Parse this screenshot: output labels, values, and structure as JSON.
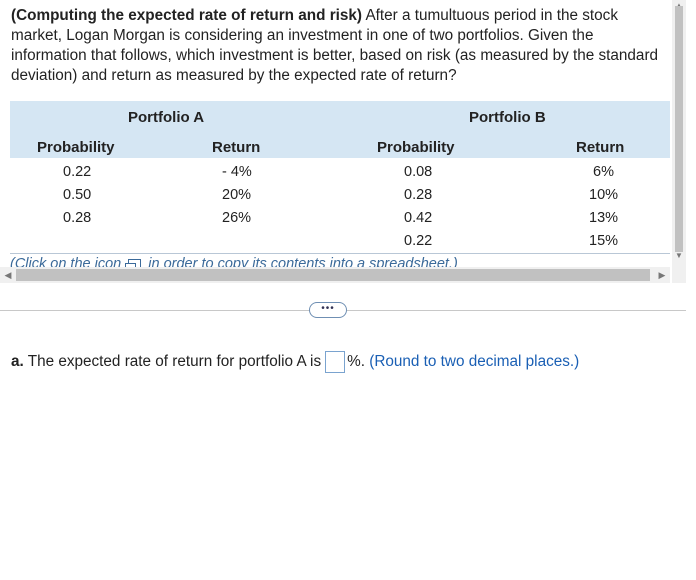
{
  "problem": {
    "title": "(Computing the expected rate of return and risk)",
    "text": "After a tumultuous period in the stock market, Logan Morgan is considering an investment in one of two portfolios. Given the information that follows, which investment is better, based on risk (as measured by the standard deviation) and return as measured by the expected rate of return?"
  },
  "table": {
    "portfolio_a_label": "Portfolio A",
    "portfolio_b_label": "Portfolio B",
    "col_probability": "Probability",
    "col_return": "Return",
    "a_rows": [
      {
        "prob": "0.22",
        "ret": "- 4%"
      },
      {
        "prob": "0.50",
        "ret": "20%"
      },
      {
        "prob": "0.28",
        "ret": "26%"
      }
    ],
    "b_rows": [
      {
        "prob": "0.08",
        "ret": "6%"
      },
      {
        "prob": "0.28",
        "ret": "10%"
      },
      {
        "prob": "0.42",
        "ret": "13%"
      },
      {
        "prob": "0.22",
        "ret": "15%"
      }
    ]
  },
  "note": {
    "prefix": "(Click on the icon",
    "suffix": "in order to copy its contents into a spreadsheet.)"
  },
  "more_button": "•••",
  "question": {
    "label": "a.",
    "text": "The expected rate of return for portfolio A is",
    "unit": "%.",
    "hint": "(Round to two decimal places.)",
    "answer_value": ""
  }
}
